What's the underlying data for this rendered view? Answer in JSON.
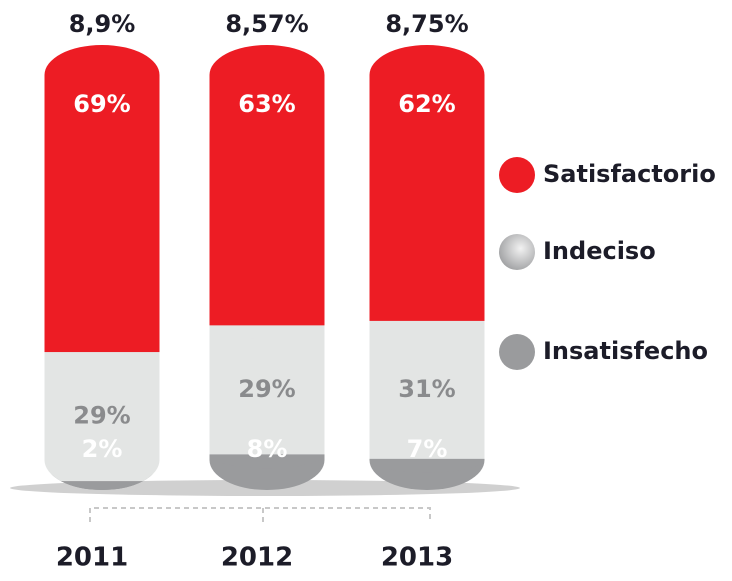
{
  "chart_data": {
    "type": "bar",
    "stacked": true,
    "categories": [
      "2011",
      "2012",
      "2013"
    ],
    "annotations": [
      "8,9%",
      "8,57%",
      "8,75%"
    ],
    "series": [
      {
        "name": "Insatisfecho",
        "color": "#9a9b9d",
        "values": [
          2,
          8,
          7
        ],
        "value_labels": [
          "2%",
          "8%",
          "7%"
        ]
      },
      {
        "name": "Indeciso",
        "color": "#e3e5e4",
        "values": [
          29,
          29,
          31
        ],
        "value_labels": [
          "29%",
          "29%",
          "31%"
        ]
      },
      {
        "name": "Satisfactorio",
        "color": "#ed1c24",
        "values": [
          69,
          63,
          62
        ],
        "value_labels": [
          "69%",
          "63%",
          "62%"
        ]
      }
    ]
  }
}
